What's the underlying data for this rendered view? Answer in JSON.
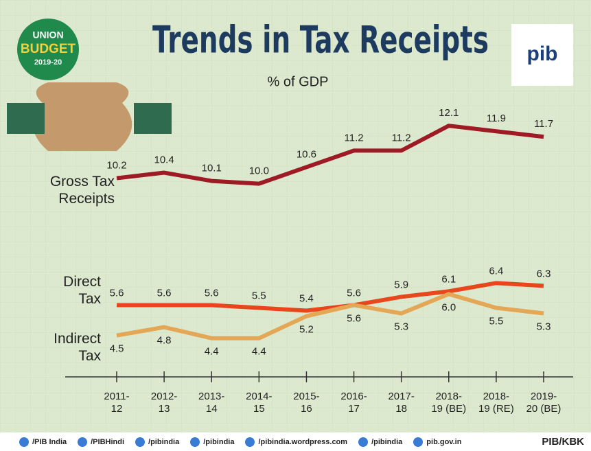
{
  "badge": [
    "UNION",
    "BUDGET",
    "2019-20"
  ],
  "logo": "pib",
  "chart_data": {
    "type": "line",
    "title": "Trends in Tax Receipts",
    "subtitle": "% of GDP",
    "categories": [
      "2011-\n12",
      "2012-\n13",
      "2013-\n14",
      "2014-\n15",
      "2015-\n16",
      "2016-\n17",
      "2017-\n18",
      "2018-\n19 (BE)",
      "2018-\n19 (RE)",
      "2019-\n20 (BE)"
    ],
    "ylim": [
      3,
      13
    ],
    "series": [
      {
        "name": "Gross Tax\nReceipts",
        "color": "#9e1b25",
        "values": [
          10.2,
          10.4,
          10.1,
          10.0,
          10.6,
          11.2,
          11.2,
          12.1,
          11.9,
          11.7
        ],
        "value_labels": [
          "10.2",
          "10.4",
          "10.1",
          "10.0",
          "10.6",
          "11.2",
          "11.2",
          "12.1",
          "11.9",
          "11.7"
        ]
      },
      {
        "name": "Direct\nTax",
        "color": "#e8471d",
        "values": [
          5.6,
          5.6,
          5.6,
          5.5,
          5.4,
          5.6,
          5.9,
          6.1,
          6.4,
          6.3
        ],
        "value_labels": [
          "5.6",
          "5.6",
          "5.6",
          "5.5",
          "5.4",
          "5.6",
          "5.9",
          "6.1",
          "6.4",
          "6.3"
        ]
      },
      {
        "name": "Indirect\nTax",
        "color": "#e3a755",
        "values": [
          4.5,
          4.8,
          4.4,
          4.4,
          5.2,
          5.6,
          5.3,
          6.0,
          5.5,
          5.3
        ],
        "value_labels": [
          "4.5",
          "4.8",
          "4.4",
          "4.4",
          "5.2",
          "5.6",
          "5.3",
          "6.0",
          "5.5",
          "5.3"
        ]
      }
    ]
  },
  "footer": [
    "/PIB India",
    "/PIBHindi",
    "/pibindia",
    "/pibindia",
    "/pibindia.wordpress.com",
    "/pibindia",
    "pib.gov.in",
    "PIB/KBK"
  ]
}
